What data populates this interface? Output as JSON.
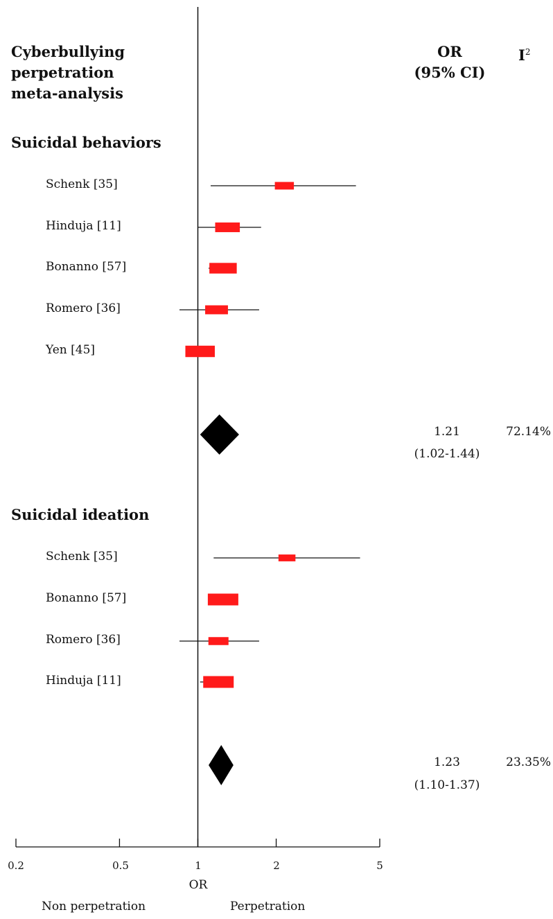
{
  "header": {
    "title_lines": [
      "Cyberbullying",
      "perpetration",
      "meta-analysis"
    ],
    "or_col_lines": [
      "OR",
      "(95% CI)"
    ],
    "i2_col": "I",
    "i2_sup": "2"
  },
  "chart_data": {
    "type": "forest",
    "scale": "log",
    "xlim": [
      0.2,
      5
    ],
    "reference_line": 1,
    "xticks": [
      0.2,
      0.5,
      1,
      2,
      5
    ],
    "xtick_labels": [
      "0.2",
      "0.5",
      "1",
      "2",
      "5"
    ],
    "xlabel": "OR",
    "direction_left": "Non perpetration",
    "direction_right": "Perpetration",
    "groups": [
      {
        "name": "Suicidal behaviors",
        "studies": [
          {
            "label": "Schenk [35]",
            "or": 2.15,
            "lo": 1.12,
            "hi": 4.05,
            "weight": 0.45
          },
          {
            "label": "Hinduja [11]",
            "or": 1.3,
            "lo": 1.0,
            "hi": 1.75,
            "weight": 0.72
          },
          {
            "label": "Bonanno [57]",
            "or": 1.25,
            "lo": 1.1,
            "hi": 1.4,
            "weight": 0.85
          },
          {
            "label": "Romero [36]",
            "or": 1.18,
            "lo": 0.85,
            "hi": 1.72,
            "weight": 0.63
          },
          {
            "label": "Yen [45]",
            "or": 1.02,
            "lo": 0.92,
            "hi": 1.12,
            "weight": 0.95
          }
        ],
        "pooled": {
          "or": 1.21,
          "lo": 1.02,
          "hi": 1.44
        },
        "pooled_or_text": "1.21",
        "pooled_ci_text": "(1.02-1.44)",
        "i2_text": "72.14%"
      },
      {
        "name": "Suicidal ideation",
        "studies": [
          {
            "label": "Schenk [35]",
            "or": 2.2,
            "lo": 1.15,
            "hi": 4.2,
            "weight": 0.35
          },
          {
            "label": "Bonanno [57]",
            "or": 1.25,
            "lo": 1.1,
            "hi": 1.4,
            "weight": 1.0
          },
          {
            "label": "Romero [36]",
            "or": 1.2,
            "lo": 0.85,
            "hi": 1.72,
            "weight": 0.5
          },
          {
            "label": "Hinduja [11]",
            "or": 1.2,
            "lo": 1.02,
            "hi": 1.37,
            "weight": 1.0
          }
        ],
        "pooled": {
          "or": 1.23,
          "lo": 1.1,
          "hi": 1.37
        },
        "pooled_or_text": "1.23",
        "pooled_ci_text": "(1.10-1.37)",
        "i2_text": "23.35%"
      }
    ],
    "colors": {
      "study_box": "#ff1a1a",
      "ci_line": "#111111",
      "pooled": "#000000"
    }
  }
}
